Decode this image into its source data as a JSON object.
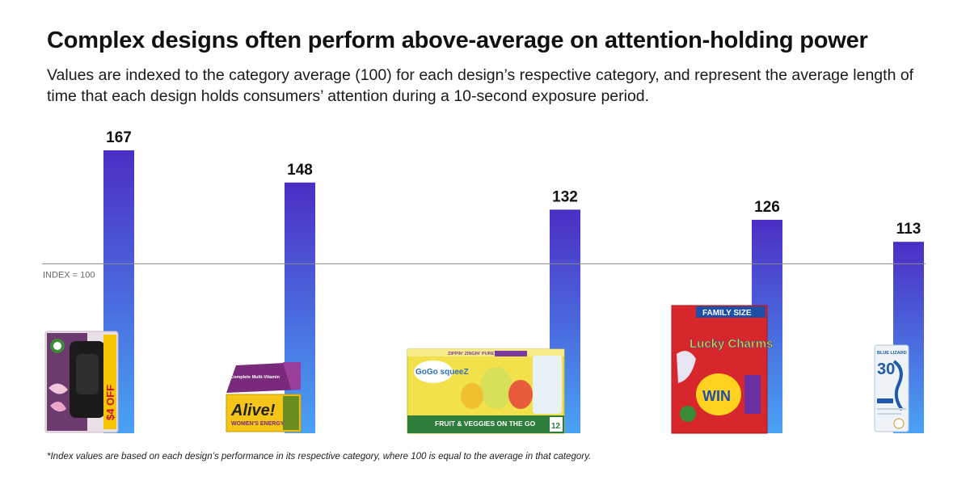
{
  "title": "Complex designs often perform above-average on attention-holding power",
  "subtitle": "Values are indexed to the category average (100) for each design’s respective category, and represent the average length of time that each design holds consumers’ attention during a 10-second exposure period.",
  "footnote": "*Index values are based on each design’s performance in its respective category, where 100 is equal to the average in that category.",
  "colors": {
    "bar_top": "#4b2ec4",
    "bar_bottom": "#4aa2f5",
    "reference_line": "#8a8a8a"
  },
  "chart_data": {
    "type": "bar",
    "categories": [
      "",
      "",
      "",
      "",
      ""
    ],
    "values": [
      167,
      148,
      132,
      126,
      113
    ],
    "reference_line": {
      "value": 100,
      "label": "INDEX = 100"
    },
    "ylim": [
      0,
      167
    ],
    "grid": false,
    "legend": "none",
    "product_images": [
      {
        "icon": "air-freshener-package-icon",
        "text": "$4 OFF"
      },
      {
        "icon": "vitamin-box-icon",
        "text": "Alive!",
        "subtext": "WOMEN'S ENERGY",
        "top_text": "Complete Multi-Vitamin"
      },
      {
        "icon": "applesauce-pouch-box-icon",
        "text": "GoGo squeeZ",
        "subtext": "FRUIT & VEGGIES ON THE GO",
        "top_text": "ZIPPIN' ZINGIN' PURE",
        "badge": "12"
      },
      {
        "icon": "cereal-box-icon",
        "text": "Lucky Charms",
        "subtext": "WIN",
        "top_text": "FAMILY SIZE"
      },
      {
        "icon": "sunscreen-bottle-icon",
        "text": "BLUE LIZARD",
        "subtext": "30"
      }
    ]
  }
}
